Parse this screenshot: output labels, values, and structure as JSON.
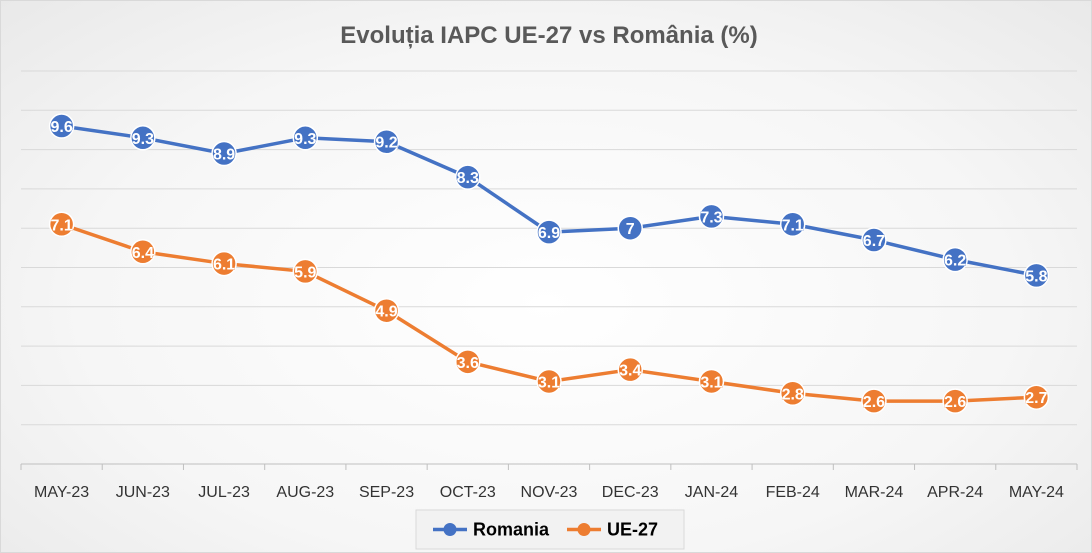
{
  "chart_data": {
    "type": "line",
    "title": "Evoluția IAPC   UE-27 vs România (%)",
    "xlabel": "",
    "ylabel": "",
    "ylim": [
      1,
      11
    ],
    "grid": true,
    "legend_position": "bottom",
    "categories": [
      "MAY-23",
      "JUN-23",
      "JUL-23",
      "AUG-23",
      "SEP-23",
      "OCT-23",
      "NOV-23",
      "DEC-23",
      "JAN-24",
      "FEB-24",
      "MAR-24",
      "APR-24",
      "MAY-24"
    ],
    "series": [
      {
        "name": "Romania",
        "color": "#4472C4",
        "values": [
          9.6,
          9.3,
          8.9,
          9.3,
          9.2,
          8.3,
          6.9,
          7,
          7.3,
          7.1,
          6.7,
          6.2,
          5.8
        ]
      },
      {
        "name": "UE-27",
        "color": "#ED7D31",
        "values": [
          7.1,
          6.4,
          6.1,
          5.9,
          4.9,
          3.6,
          3.1,
          3.4,
          3.1,
          2.8,
          2.6,
          2.6,
          2.7
        ]
      }
    ]
  }
}
